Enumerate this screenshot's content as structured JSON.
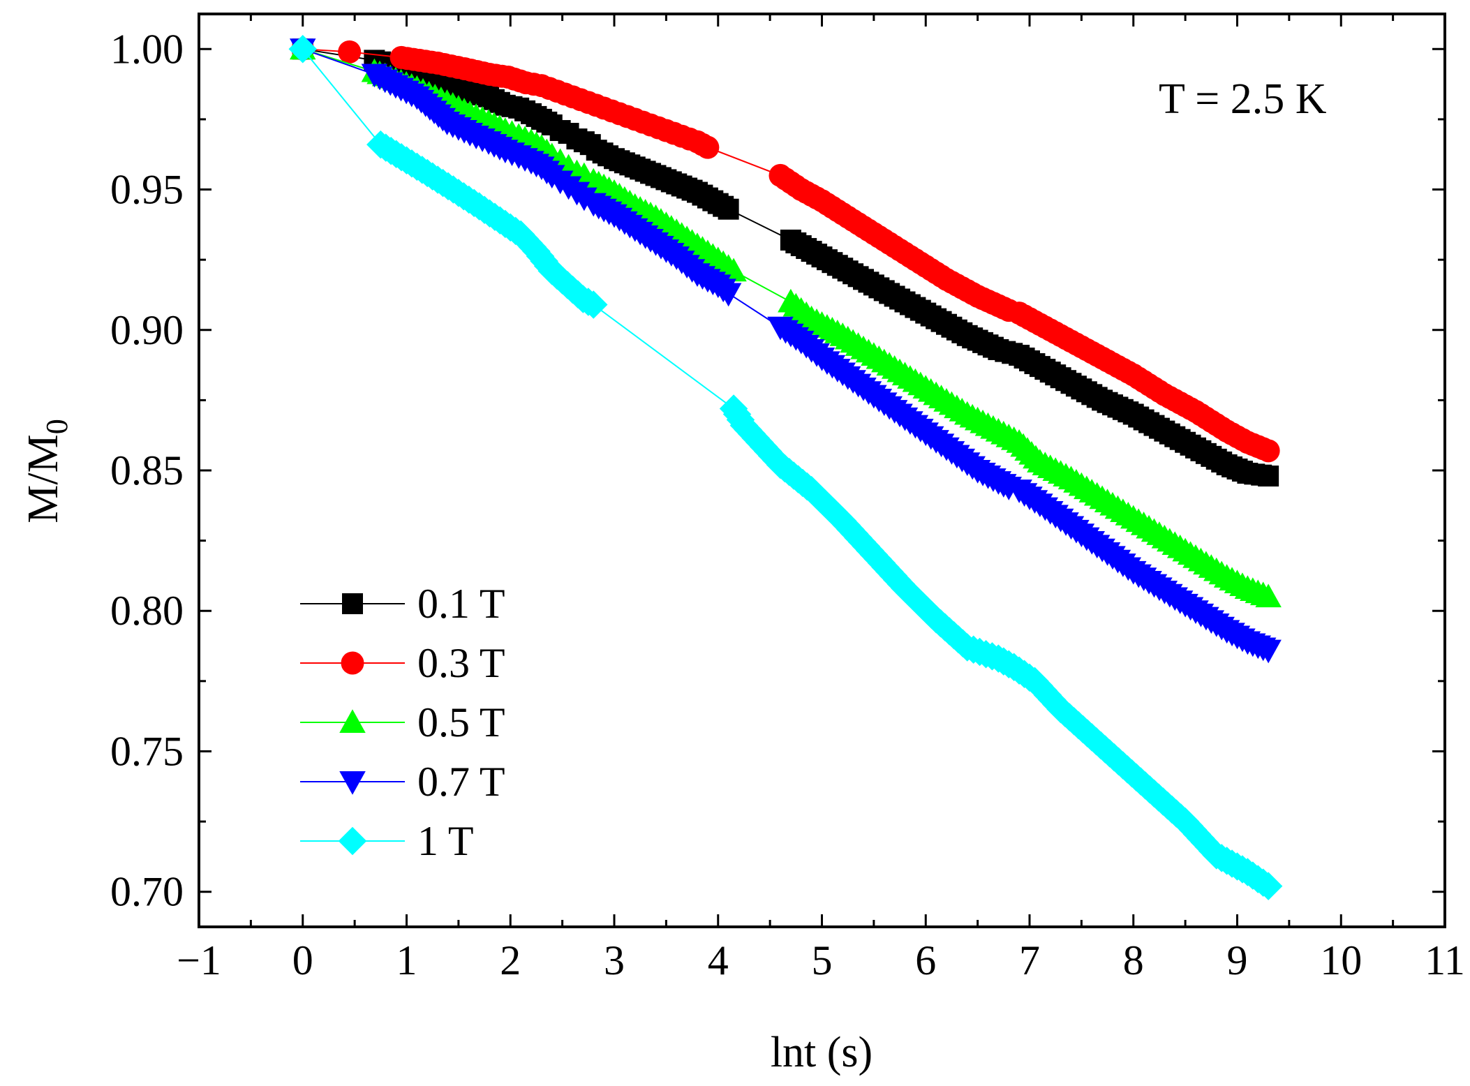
{
  "chart_data": {
    "type": "scatter",
    "title": "",
    "annotation": "T = 2.5 K",
    "xlabel": "lnt (s)",
    "ylabel_main": "M/M",
    "ylabel_sub": "0",
    "xlim": [
      -1,
      11
    ],
    "ylim": [
      0.6875,
      1.0125
    ],
    "x_ticks": [
      -1,
      0,
      1,
      2,
      3,
      4,
      5,
      6,
      7,
      8,
      9,
      10,
      11
    ],
    "x_tick_labels": [
      "−1",
      "0",
      "1",
      "2",
      "3",
      "4",
      "5",
      "6",
      "7",
      "8",
      "9",
      "10",
      "11"
    ],
    "y_ticks": [
      0.7,
      0.75,
      0.8,
      0.85,
      0.9,
      0.95,
      1.0
    ],
    "y_tick_labels": [
      "0.70",
      "0.75",
      "0.80",
      "0.85",
      "0.90",
      "0.95",
      "1.00"
    ],
    "legend_position": "bottom-left",
    "series": [
      {
        "name": "0.1 T",
        "marker": "square",
        "color": "#000000",
        "x": [
          0,
          0.69,
          1.1,
          1.39,
          1.61,
          1.79,
          1.95,
          2.08,
          2.2,
          2.3,
          2.4,
          2.48,
          2.56,
          2.64,
          2.71,
          2.77,
          2.83,
          2.89,
          2.94,
          3.0,
          3.2,
          3.4,
          3.6,
          3.8,
          4.0,
          4.1,
          4.7,
          4.9,
          5.2,
          5.5,
          5.8,
          6.1,
          6.4,
          6.7,
          6.9,
          7.1,
          7.4,
          7.7,
          8.0,
          8.3,
          8.6,
          8.9,
          9.1,
          9.3
        ],
        "y": [
          1.0,
          0.996,
          0.992,
          0.988,
          0.985,
          0.983,
          0.98,
          0.979,
          0.977,
          0.975,
          0.973,
          0.971,
          0.97,
          0.968,
          0.967,
          0.966,
          0.964,
          0.963,
          0.962,
          0.961,
          0.958,
          0.955,
          0.952,
          0.949,
          0.945,
          0.943,
          0.932,
          0.928,
          0.922,
          0.916,
          0.91,
          0.904,
          0.898,
          0.893,
          0.891,
          0.887,
          0.881,
          0.875,
          0.87,
          0.864,
          0.858,
          0.852,
          0.849,
          0.848
        ]
      },
      {
        "name": "0.3 T",
        "marker": "circle",
        "color": "#ff0000",
        "x": [
          0,
          0.45,
          0.95,
          1.3,
          1.56,
          1.8,
          1.98,
          2.15,
          2.3,
          2.45,
          2.6,
          2.75,
          2.9,
          3.05,
          3.2,
          3.35,
          3.5,
          3.65,
          3.8,
          3.9,
          4.6,
          4.8,
          5.0,
          5.3,
          5.6,
          5.9,
          6.2,
          6.5,
          6.8,
          6.9,
          7.1,
          7.4,
          7.7,
          8.0,
          8.3,
          8.6,
          8.9,
          9.1,
          9.3
        ],
        "y": [
          1.0,
          0.999,
          0.997,
          0.995,
          0.993,
          0.991,
          0.99,
          0.988,
          0.987,
          0.985,
          0.983,
          0.981,
          0.979,
          0.977,
          0.975,
          0.973,
          0.971,
          0.969,
          0.967,
          0.965,
          0.955,
          0.95,
          0.946,
          0.939,
          0.932,
          0.925,
          0.918,
          0.912,
          0.907,
          0.906,
          0.902,
          0.896,
          0.89,
          0.884,
          0.877,
          0.871,
          0.864,
          0.86,
          0.857
        ]
      },
      {
        "name": "0.5 T",
        "marker": "triangle-up",
        "color": "#00ff00",
        "x": [
          0,
          0.69,
          1.1,
          1.39,
          1.61,
          1.79,
          1.95,
          2.08,
          2.2,
          2.3,
          2.4,
          2.48,
          2.56,
          2.64,
          2.71,
          2.8,
          3.0,
          3.2,
          3.4,
          3.6,
          3.8,
          4.0,
          4.15,
          4.7,
          4.9,
          5.2,
          5.5,
          5.8,
          6.1,
          6.4,
          6.7,
          6.9,
          7.1,
          7.4,
          7.7,
          8.0,
          8.3,
          8.6,
          8.9,
          9.1,
          9.3
        ],
        "y": [
          1.0,
          0.992,
          0.986,
          0.981,
          0.977,
          0.974,
          0.971,
          0.969,
          0.967,
          0.965,
          0.962,
          0.96,
          0.958,
          0.956,
          0.955,
          0.953,
          0.949,
          0.944,
          0.94,
          0.935,
          0.93,
          0.925,
          0.921,
          0.91,
          0.904,
          0.898,
          0.891,
          0.884,
          0.877,
          0.87,
          0.864,
          0.86,
          0.853,
          0.847,
          0.84,
          0.833,
          0.826,
          0.819,
          0.812,
          0.808,
          0.805
        ]
      },
      {
        "name": "0.7 T",
        "marker": "triangle-down",
        "color": "#0000ff",
        "x": [
          0,
          0.69,
          1.1,
          1.39,
          1.61,
          1.79,
          1.95,
          2.08,
          2.2,
          2.3,
          2.4,
          2.48,
          2.56,
          2.64,
          2.71,
          2.8,
          3.0,
          3.2,
          3.4,
          3.6,
          3.8,
          4.0,
          4.1,
          4.6,
          4.8,
          5.0,
          5.3,
          5.6,
          5.9,
          6.2,
          6.5,
          6.8,
          6.9,
          7.1,
          7.4,
          7.7,
          8.0,
          8.3,
          8.6,
          8.9,
          9.1,
          9.3
        ],
        "y": [
          1.0,
          0.991,
          0.983,
          0.974,
          0.97,
          0.967,
          0.964,
          0.962,
          0.96,
          0.958,
          0.955,
          0.953,
          0.951,
          0.949,
          0.947,
          0.945,
          0.941,
          0.936,
          0.931,
          0.926,
          0.92,
          0.916,
          0.913,
          0.901,
          0.896,
          0.89,
          0.882,
          0.874,
          0.866,
          0.858,
          0.85,
          0.844,
          0.843,
          0.838,
          0.83,
          0.822,
          0.814,
          0.807,
          0.8,
          0.793,
          0.789,
          0.786
        ]
      },
      {
        "name": "1 T",
        "marker": "diamond",
        "color": "#00ffff",
        "x": [
          0,
          0.75,
          1.15,
          1.45,
          1.7,
          1.9,
          2.1,
          2.25,
          2.4,
          2.55,
          2.7,
          2.8,
          4.15,
          4.25,
          4.4,
          4.6,
          4.9,
          5.2,
          5.5,
          5.8,
          6.1,
          6.4,
          6.7,
          6.85,
          7.05,
          7.3,
          7.6,
          7.9,
          8.2,
          8.5,
          8.8,
          9.1,
          9.3
        ],
        "y": [
          1.0,
          0.966,
          0.957,
          0.95,
          0.944,
          0.939,
          0.934,
          0.928,
          0.921,
          0.916,
          0.911,
          0.909,
          0.872,
          0.866,
          0.86,
          0.852,
          0.843,
          0.832,
          0.82,
          0.808,
          0.797,
          0.787,
          0.783,
          0.78,
          0.775,
          0.765,
          0.755,
          0.745,
          0.735,
          0.725,
          0.713,
          0.707,
          0.702
        ]
      }
    ]
  }
}
